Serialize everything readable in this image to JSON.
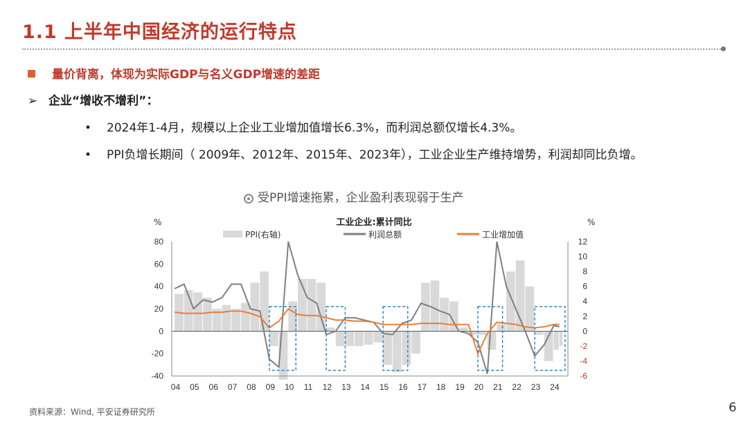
{
  "header": {
    "number": "1.1",
    "title": "上半年中国经济的运行特点"
  },
  "bullets": {
    "b1": "量价背离，体现为实际GDP与名义GDP增速的差距",
    "b2": "企业“增收不增利”：",
    "b3": "2024年1-4月，规模以上企业工业增加值增长6.3%，而利润总额仅增长4.3%。",
    "b4": "PPI负增长期间（ 2009年、2012年、2015年、2023年），工业企业生产维持增势，利润却同比负增。"
  },
  "caption": "受PPI增速拖累，企业盈利表现弱于生产",
  "source": "资料来源：Wind, 平安证券研究所",
  "page_number": "6",
  "colors": {
    "accent": "#c0392b",
    "ppi": "#d9d9d9",
    "profit": "#7f7f7f",
    "industrial": "#ed7d31",
    "box": "#2e86c1"
  },
  "chart_data": {
    "type": "line",
    "title": "工业企业:累计同比",
    "left_unit": "%",
    "right_unit": "%",
    "y_left_lim": [
      -40,
      80
    ],
    "y_left_ticks": [
      "80",
      "60",
      "40",
      "20",
      "0",
      "-20",
      "-40"
    ],
    "y_right_lim": [
      -6,
      12
    ],
    "y_right_ticks": [
      "12",
      "10",
      "8",
      "6",
      "4",
      "2",
      "0",
      "-2",
      "-4",
      "-6"
    ],
    "x_ticks": [
      "04",
      "05",
      "06",
      "07",
      "08",
      "09",
      "10",
      "11",
      "12",
      "13",
      "14",
      "15",
      "16",
      "17",
      "18",
      "19",
      "20",
      "21",
      "22",
      "23",
      "24"
    ],
    "legend": [
      "PPI(右轴)",
      "利润总额",
      "工业增加值"
    ],
    "x": [
      2004.0,
      2004.5,
      2005.0,
      2005.5,
      2006.0,
      2006.5,
      2007.0,
      2007.5,
      2008.0,
      2008.5,
      2009.0,
      2009.5,
      2010.0,
      2010.5,
      2011.0,
      2011.5,
      2012.0,
      2012.5,
      2013.0,
      2013.5,
      2014.0,
      2014.5,
      2015.0,
      2015.5,
      2016.0,
      2016.5,
      2017.0,
      2017.5,
      2018.0,
      2018.5,
      2019.0,
      2019.5,
      2020.0,
      2020.5,
      2021.0,
      2021.5,
      2022.0,
      2022.5,
      2023.0,
      2023.5,
      2024.0,
      2024.3
    ],
    "series": [
      {
        "name": "PPI(右轴)",
        "axis": "right",
        "values": [
          5.0,
          5.5,
          5.2,
          4.5,
          3.0,
          3.5,
          3.0,
          3.8,
          6.5,
          8.0,
          -2.0,
          -6.5,
          4.0,
          7.0,
          7.0,
          6.5,
          0.5,
          -2.0,
          -2.0,
          -2.0,
          -1.8,
          -1.5,
          -4.5,
          -5.5,
          -4.5,
          -3.0,
          6.5,
          6.8,
          4.5,
          4.0,
          0.5,
          -0.5,
          -0.5,
          -2.5,
          1.0,
          8.0,
          9.5,
          6.0,
          -0.5,
          -4.0,
          -2.5,
          -2.0
        ]
      },
      {
        "name": "利润总额",
        "axis": "left",
        "values": [
          38,
          42,
          20,
          28,
          26,
          30,
          42,
          42,
          20,
          18,
          -25,
          -32,
          80,
          50,
          30,
          25,
          -3,
          0,
          12,
          12,
          10,
          8,
          -2,
          -3,
          7,
          10,
          25,
          22,
          18,
          15,
          0,
          -2,
          -10,
          -38,
          80,
          40,
          20,
          0,
          -22,
          -12,
          5,
          4
        ]
      },
      {
        "name": "工业增加值",
        "axis": "left",
        "values": [
          17,
          16,
          16,
          16,
          17,
          17,
          18,
          18,
          16,
          13,
          3,
          9,
          20,
          15,
          14,
          14,
          12,
          10,
          10,
          9,
          9,
          8,
          6,
          6,
          6,
          6,
          7,
          7,
          7,
          6,
          6,
          6,
          -20,
          -2,
          8,
          7,
          6,
          4,
          3,
          4,
          6,
          6
        ]
      }
    ],
    "highlight_ranges": [
      [
        2009.0,
        2010.4
      ],
      [
        2012.0,
        2013.0
      ],
      [
        2015.0,
        2016.3
      ],
      [
        2020.0,
        2021.3
      ],
      [
        2023.0,
        2024.6
      ]
    ]
  }
}
